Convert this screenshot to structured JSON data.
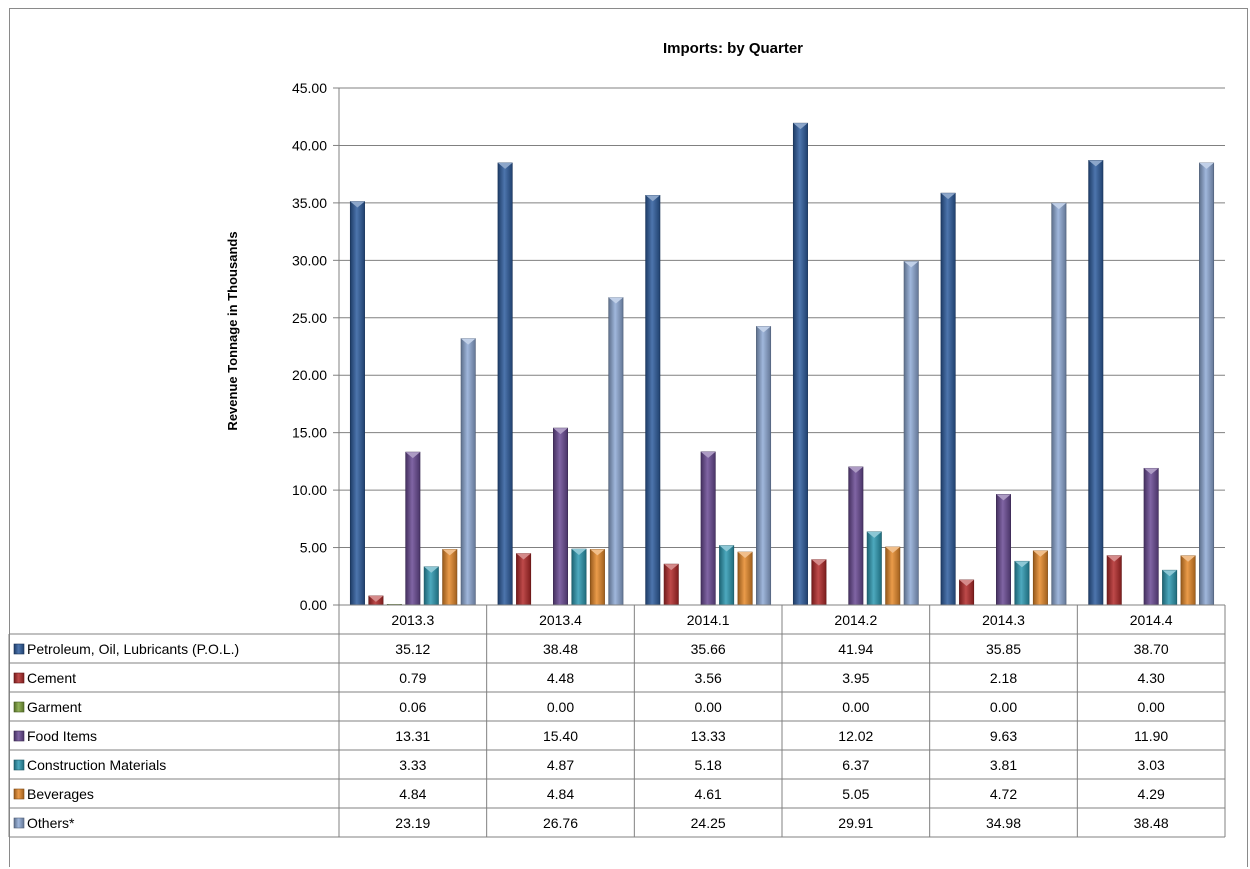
{
  "chart_data": {
    "type": "bar",
    "title": "Imports: by Quarter",
    "xlabel": "",
    "ylabel": "Revenue Tonnage in Thousands",
    "ylim": [
      0,
      45
    ],
    "ytick_step": 5,
    "ytick_labels": [
      "0.00",
      "5.00",
      "10.00",
      "15.00",
      "20.00",
      "25.00",
      "30.00",
      "35.00",
      "40.00",
      "45.00"
    ],
    "grid": true,
    "legend": "data-table",
    "categories": [
      "2013.3",
      "2013.4",
      "2014.1",
      "2014.2",
      "2014.3",
      "2014.4"
    ],
    "series": [
      {
        "name": "Petroleum, Oil, Lubricants (P.O.L.)",
        "color": "#2e5d9e",
        "values": [
          35.12,
          38.48,
          35.66,
          41.94,
          35.85,
          38.7
        ],
        "labels": [
          "35.12",
          "38.48",
          "35.66",
          "41.94",
          "35.85",
          "38.70"
        ]
      },
      {
        "name": "Cement",
        "color": "#b32a2a",
        "values": [
          0.79,
          4.48,
          3.56,
          3.95,
          2.18,
          4.3
        ],
        "labels": [
          "0.79",
          "4.48",
          "3.56",
          "3.95",
          "2.18",
          "4.30"
        ]
      },
      {
        "name": "Garment",
        "color": "#7ea33a",
        "values": [
          0.06,
          0.0,
          0.0,
          0.0,
          0.0,
          0.0
        ],
        "labels": [
          "0.06",
          "0.00",
          "0.00",
          "0.00",
          "0.00",
          "0.00"
        ]
      },
      {
        "name": "Food Items",
        "color": "#6a4a94",
        "values": [
          13.31,
          15.4,
          13.33,
          12.02,
          9.63,
          11.9
        ],
        "labels": [
          "13.31",
          "15.40",
          "13.33",
          "12.02",
          "9.63",
          "11.90"
        ]
      },
      {
        "name": "Construction Materials",
        "color": "#2d9ab3",
        "values": [
          3.33,
          4.87,
          5.18,
          6.37,
          3.81,
          3.03
        ],
        "labels": [
          "3.33",
          "4.87",
          "5.18",
          "6.37",
          "3.81",
          "3.03"
        ]
      },
      {
        "name": "Beverages",
        "color": "#e6892a",
        "values": [
          4.84,
          4.84,
          4.61,
          5.05,
          4.72,
          4.29
        ],
        "labels": [
          "4.84",
          "4.84",
          "4.61",
          "5.05",
          "4.72",
          "4.29"
        ]
      },
      {
        "name": "Others*",
        "color": "#8faad6",
        "values": [
          23.19,
          26.76,
          24.25,
          29.91,
          34.98,
          38.48
        ],
        "labels": [
          "23.19",
          "26.76",
          "24.25",
          "29.91",
          "34.98",
          "38.48"
        ]
      }
    ]
  }
}
